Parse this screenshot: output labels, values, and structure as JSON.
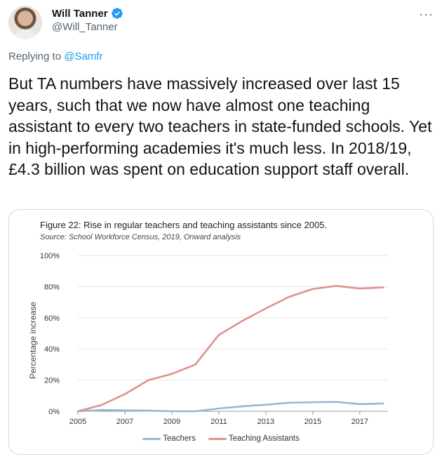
{
  "tweet": {
    "author_name": "Will Tanner",
    "author_handle": "@Will_Tanner",
    "more_label": "···",
    "replying_prefix": "Replying to",
    "replying_mention": "@Samfr",
    "text": "But TA numbers have massively increased over last 15 years, such that we now have almost one teaching assistant to every two teachers in state-funded schools. Yet in high-performing academies it's much less. In 2018/19, £4.3 billion was spent on education support staff overall."
  },
  "figure": {
    "title": "Figure 22: Rise in regular teachers and teaching assistants since 2005.",
    "source": "Source: School Workforce Census, 2019, Onward analysis"
  },
  "colors": {
    "teachers": "#9ab7cf",
    "teaching_assistants": "#e0918f",
    "verified": "#1d9bf0"
  },
  "chart_data": {
    "type": "line",
    "title": "Figure 22: Rise in regular teachers and teaching assistants since 2005.",
    "subtitle": "Source: School Workforce Census, 2019, Onward analysis",
    "ylabel": "Percentage increase",
    "xlabel": "",
    "x": [
      2005,
      2006,
      2007,
      2008,
      2009,
      2010,
      2011,
      2012,
      2013,
      2014,
      2015,
      2016,
      2017,
      2018
    ],
    "xticks": [
      "2005",
      "2007",
      "2009",
      "2011",
      "2013",
      "2015",
      "2017"
    ],
    "xlim": [
      2005,
      2018.2
    ],
    "yticks": [
      "0%",
      "20%",
      "40%",
      "60%",
      "80%",
      "100%"
    ],
    "ylim": [
      0,
      100
    ],
    "grid": true,
    "legend": "bottom",
    "series": [
      {
        "name": "Teachers",
        "values": [
          0,
          0.8,
          0.6,
          0.4,
          0,
          0,
          1.8,
          3.2,
          4.2,
          5.5,
          5.8,
          6,
          4.6,
          5
        ]
      },
      {
        "name": "Teaching Assistants",
        "values": [
          0,
          4,
          11,
          20,
          24,
          30,
          49,
          58,
          66,
          73.5,
          78.5,
          80.5,
          78.8,
          79.5
        ]
      }
    ]
  }
}
